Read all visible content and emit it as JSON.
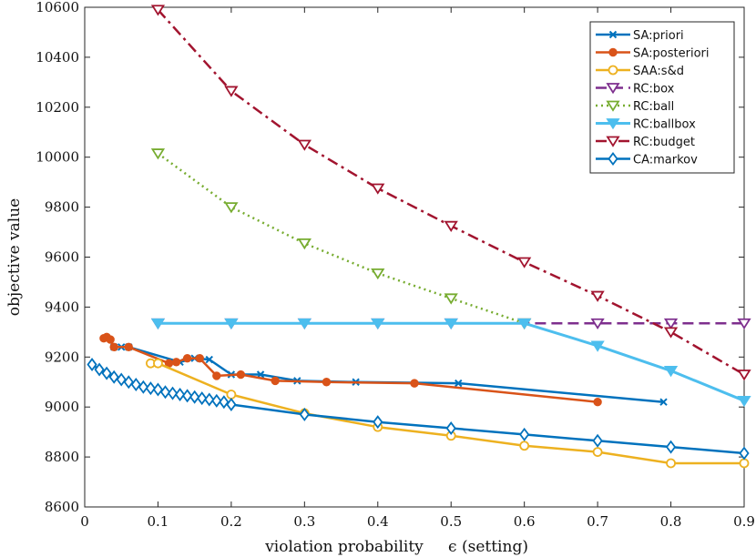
{
  "chart_data": {
    "type": "line",
    "title": "",
    "xlabel": "violation probability",
    "xlabel_suffix": "ϵ (setting)",
    "ylabel": "objective value",
    "xlim": [
      0,
      0.9
    ],
    "ylim": [
      8600,
      10600
    ],
    "xticks": [
      0,
      0.1,
      0.2,
      0.3,
      0.4,
      0.5,
      0.6,
      0.7,
      0.8,
      0.9
    ],
    "xtick_labels": [
      "0",
      "0.1",
      "0.2",
      "0.3",
      "0.4",
      "0.5",
      "0.6",
      "0.7",
      "0.8",
      "0.9"
    ],
    "yticks": [
      8600,
      8800,
      9000,
      9200,
      9400,
      9600,
      9800,
      10000,
      10200,
      10400,
      10600
    ],
    "ytick_labels": [
      "8600",
      "8800",
      "9000",
      "9200",
      "9400",
      "9600",
      "9800",
      "10000",
      "10200",
      "10400",
      "10600"
    ],
    "legend_position": "top-right",
    "series": [
      {
        "name": "SA:priori",
        "color": "#0072BD",
        "dash": "solid",
        "marker": "x",
        "width": 2.5,
        "x": [
          0.04,
          0.05,
          0.06,
          0.13,
          0.15,
          0.17,
          0.2,
          0.24,
          0.29,
          0.37,
          0.51,
          0.79
        ],
        "y": [
          9240,
          9240,
          9240,
          9180,
          9195,
          9190,
          9130,
          9130,
          9105,
          9100,
          9095,
          9020
        ]
      },
      {
        "name": "SA:posteriori",
        "color": "#D95319",
        "dash": "solid",
        "marker": "circle",
        "width": 2.5,
        "x": [
          0.026,
          0.03,
          0.035,
          0.04,
          0.06,
          0.115,
          0.125,
          0.14,
          0.157,
          0.18,
          0.213,
          0.26,
          0.33,
          0.45,
          0.7
        ],
        "y": [
          9275,
          9280,
          9270,
          9240,
          9240,
          9175,
          9180,
          9195,
          9195,
          9125,
          9130,
          9105,
          9100,
          9095,
          9020
        ]
      },
      {
        "name": "SAA:s&d",
        "color": "#EDB120",
        "dash": "solid",
        "marker": "circle-open",
        "width": 2.5,
        "x": [
          0.09,
          0.1,
          0.2,
          0.3,
          0.4,
          0.5,
          0.6,
          0.7,
          0.8,
          0.9
        ],
        "y": [
          9175,
          9175,
          9050,
          8975,
          8920,
          8885,
          8845,
          8820,
          8775,
          8775
        ]
      },
      {
        "name": "RC:box",
        "color": "#7E2F8E",
        "dash": "dash",
        "marker": "triangle-down-open",
        "width": 2.5,
        "x": [
          0.1,
          0.2,
          0.3,
          0.4,
          0.5,
          0.6,
          0.7,
          0.8,
          0.9
        ],
        "y": [
          9335,
          9335,
          9335,
          9335,
          9335,
          9335,
          9335,
          9335,
          9335
        ]
      },
      {
        "name": "RC:ball",
        "color": "#77AC30",
        "dash": "dot",
        "marker": "triangle-down-open",
        "width": 2.5,
        "x": [
          0.1,
          0.2,
          0.3,
          0.4,
          0.5,
          0.6
        ],
        "y": [
          10015,
          9800,
          9655,
          9535,
          9435,
          9335
        ]
      },
      {
        "name": "RC:ballbox",
        "color": "#4DBEEE",
        "dash": "solid",
        "marker": "triangle-down-filled",
        "width": 3,
        "x": [
          0.1,
          0.2,
          0.3,
          0.4,
          0.5,
          0.6,
          0.7,
          0.8,
          0.9
        ],
        "y": [
          9335,
          9335,
          9335,
          9335,
          9335,
          9335,
          9245,
          9145,
          9025
        ]
      },
      {
        "name": "RC:budget",
        "color": "#A2142F",
        "dash": "dashdot",
        "marker": "triangle-down-open",
        "width": 2.5,
        "x": [
          0.1,
          0.2,
          0.3,
          0.4,
          0.5,
          0.6,
          0.7,
          0.8,
          0.9
        ],
        "y": [
          10590,
          10265,
          10050,
          9875,
          9725,
          9580,
          9445,
          9300,
          9130
        ]
      },
      {
        "name": "CA:markov",
        "color": "#0072BD",
        "dash": "solid",
        "marker": "diamond-open",
        "width": 2.5,
        "x": [
          0.01,
          0.02,
          0.03,
          0.04,
          0.05,
          0.06,
          0.07,
          0.08,
          0.09,
          0.1,
          0.11,
          0.12,
          0.13,
          0.14,
          0.15,
          0.16,
          0.17,
          0.18,
          0.19,
          0.2,
          0.3,
          0.4,
          0.5,
          0.6,
          0.7,
          0.8,
          0.9
        ],
        "y": [
          9170,
          9150,
          9135,
          9120,
          9110,
          9100,
          9090,
          9080,
          9075,
          9070,
          9060,
          9055,
          9050,
          9045,
          9040,
          9035,
          9030,
          9025,
          9020,
          9010,
          8970,
          8940,
          8915,
          8890,
          8865,
          8840,
          8815
        ]
      }
    ]
  }
}
